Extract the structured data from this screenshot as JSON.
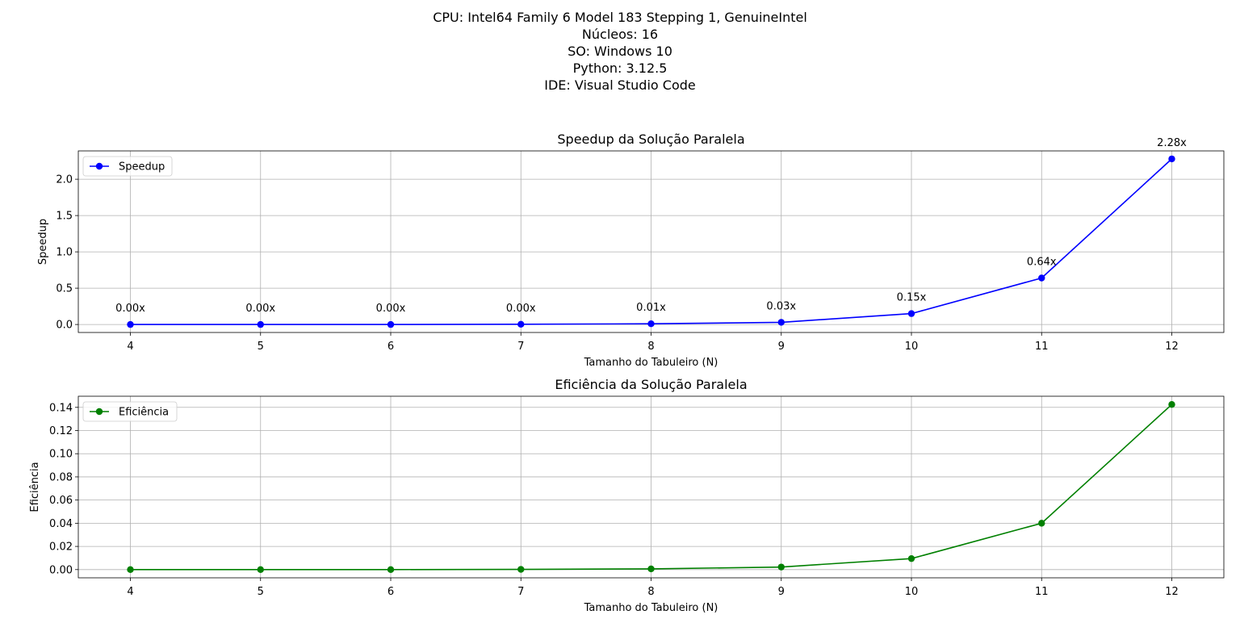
{
  "suptitle": {
    "lines": [
      "CPU: Intel64 Family 6 Model 183 Stepping 1, GenuineIntel",
      "Núcleos: 16",
      "SO: Windows 10",
      "Python: 3.12.5",
      "IDE: Visual Studio Code"
    ]
  },
  "chart_data": [
    {
      "type": "line",
      "title": "Speedup da Solução Paralela",
      "xlabel": "Tamanho do Tabuleiro (N)",
      "ylabel": "Speedup",
      "x": [
        4,
        5,
        6,
        7,
        8,
        9,
        10,
        11,
        12
      ],
      "xticks": [
        "4",
        "5",
        "6",
        "7",
        "8",
        "9",
        "10",
        "11",
        "12"
      ],
      "yticks": [
        "0.0",
        "0.5",
        "1.0",
        "1.5",
        "2.0"
      ],
      "ytick_values": [
        0,
        0.5,
        1.0,
        1.5,
        2.0
      ],
      "xlim": [
        3.6,
        12.4
      ],
      "ylim": [
        -0.11,
        2.39
      ],
      "grid": true,
      "legend_position": "upper-left",
      "series": [
        {
          "name": "Speedup",
          "color": "#0000ff",
          "marker": "circle",
          "values": [
            0.0,
            0.0,
            0.0,
            0.003,
            0.01,
            0.03,
            0.15,
            0.64,
            2.28
          ],
          "data_labels": [
            "0.00x",
            "0.00x",
            "0.00x",
            "0.00x",
            "0.01x",
            "0.03x",
            "0.15x",
            "0.64x",
            "2.28x"
          ]
        }
      ]
    },
    {
      "type": "line",
      "title": "Eficiência da Solução Paralela",
      "xlabel": "Tamanho do Tabuleiro (N)",
      "ylabel": "Eficiência",
      "x": [
        4,
        5,
        6,
        7,
        8,
        9,
        10,
        11,
        12
      ],
      "xticks": [
        "4",
        "5",
        "6",
        "7",
        "8",
        "9",
        "10",
        "11",
        "12"
      ],
      "yticks": [
        "0.00",
        "0.02",
        "0.04",
        "0.06",
        "0.08",
        "0.10",
        "0.12",
        "0.14"
      ],
      "ytick_values": [
        0,
        0.02,
        0.04,
        0.06,
        0.08,
        0.1,
        0.12,
        0.14
      ],
      "xlim": [
        3.6,
        12.4
      ],
      "ylim": [
        -0.0071,
        0.1496
      ],
      "grid": true,
      "legend_position": "upper-left",
      "series": [
        {
          "name": "Eficiência",
          "color": "#008000",
          "marker": "circle",
          "values": [
            0.0,
            0.0,
            0.0,
            0.0002,
            0.0006,
            0.0022,
            0.0095,
            0.04,
            0.1425
          ]
        }
      ]
    }
  ]
}
